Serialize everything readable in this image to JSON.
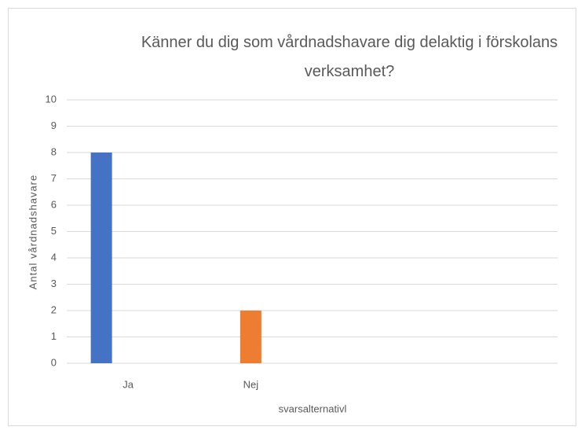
{
  "chart_data": {
    "type": "bar",
    "title": "Känner du dig som vårdnadshavare dig delaktig i förskolans verksamhet?",
    "x_label": "svarsalternativl",
    "y_label": "Antal vårdnadshavare",
    "categories": [
      "Ja",
      "Nej",
      null,
      null
    ],
    "series": [
      {
        "color": "#4472c4",
        "values": [
          8,
          null,
          null,
          null
        ]
      },
      {
        "color": "#ed7d31",
        "values": [
          null,
          2,
          null,
          null
        ]
      }
    ],
    "ylim": [
      0,
      10
    ],
    "yticks": [
      0,
      1,
      2,
      3,
      4,
      5,
      6,
      7,
      8,
      9,
      10
    ],
    "grid": true
  }
}
